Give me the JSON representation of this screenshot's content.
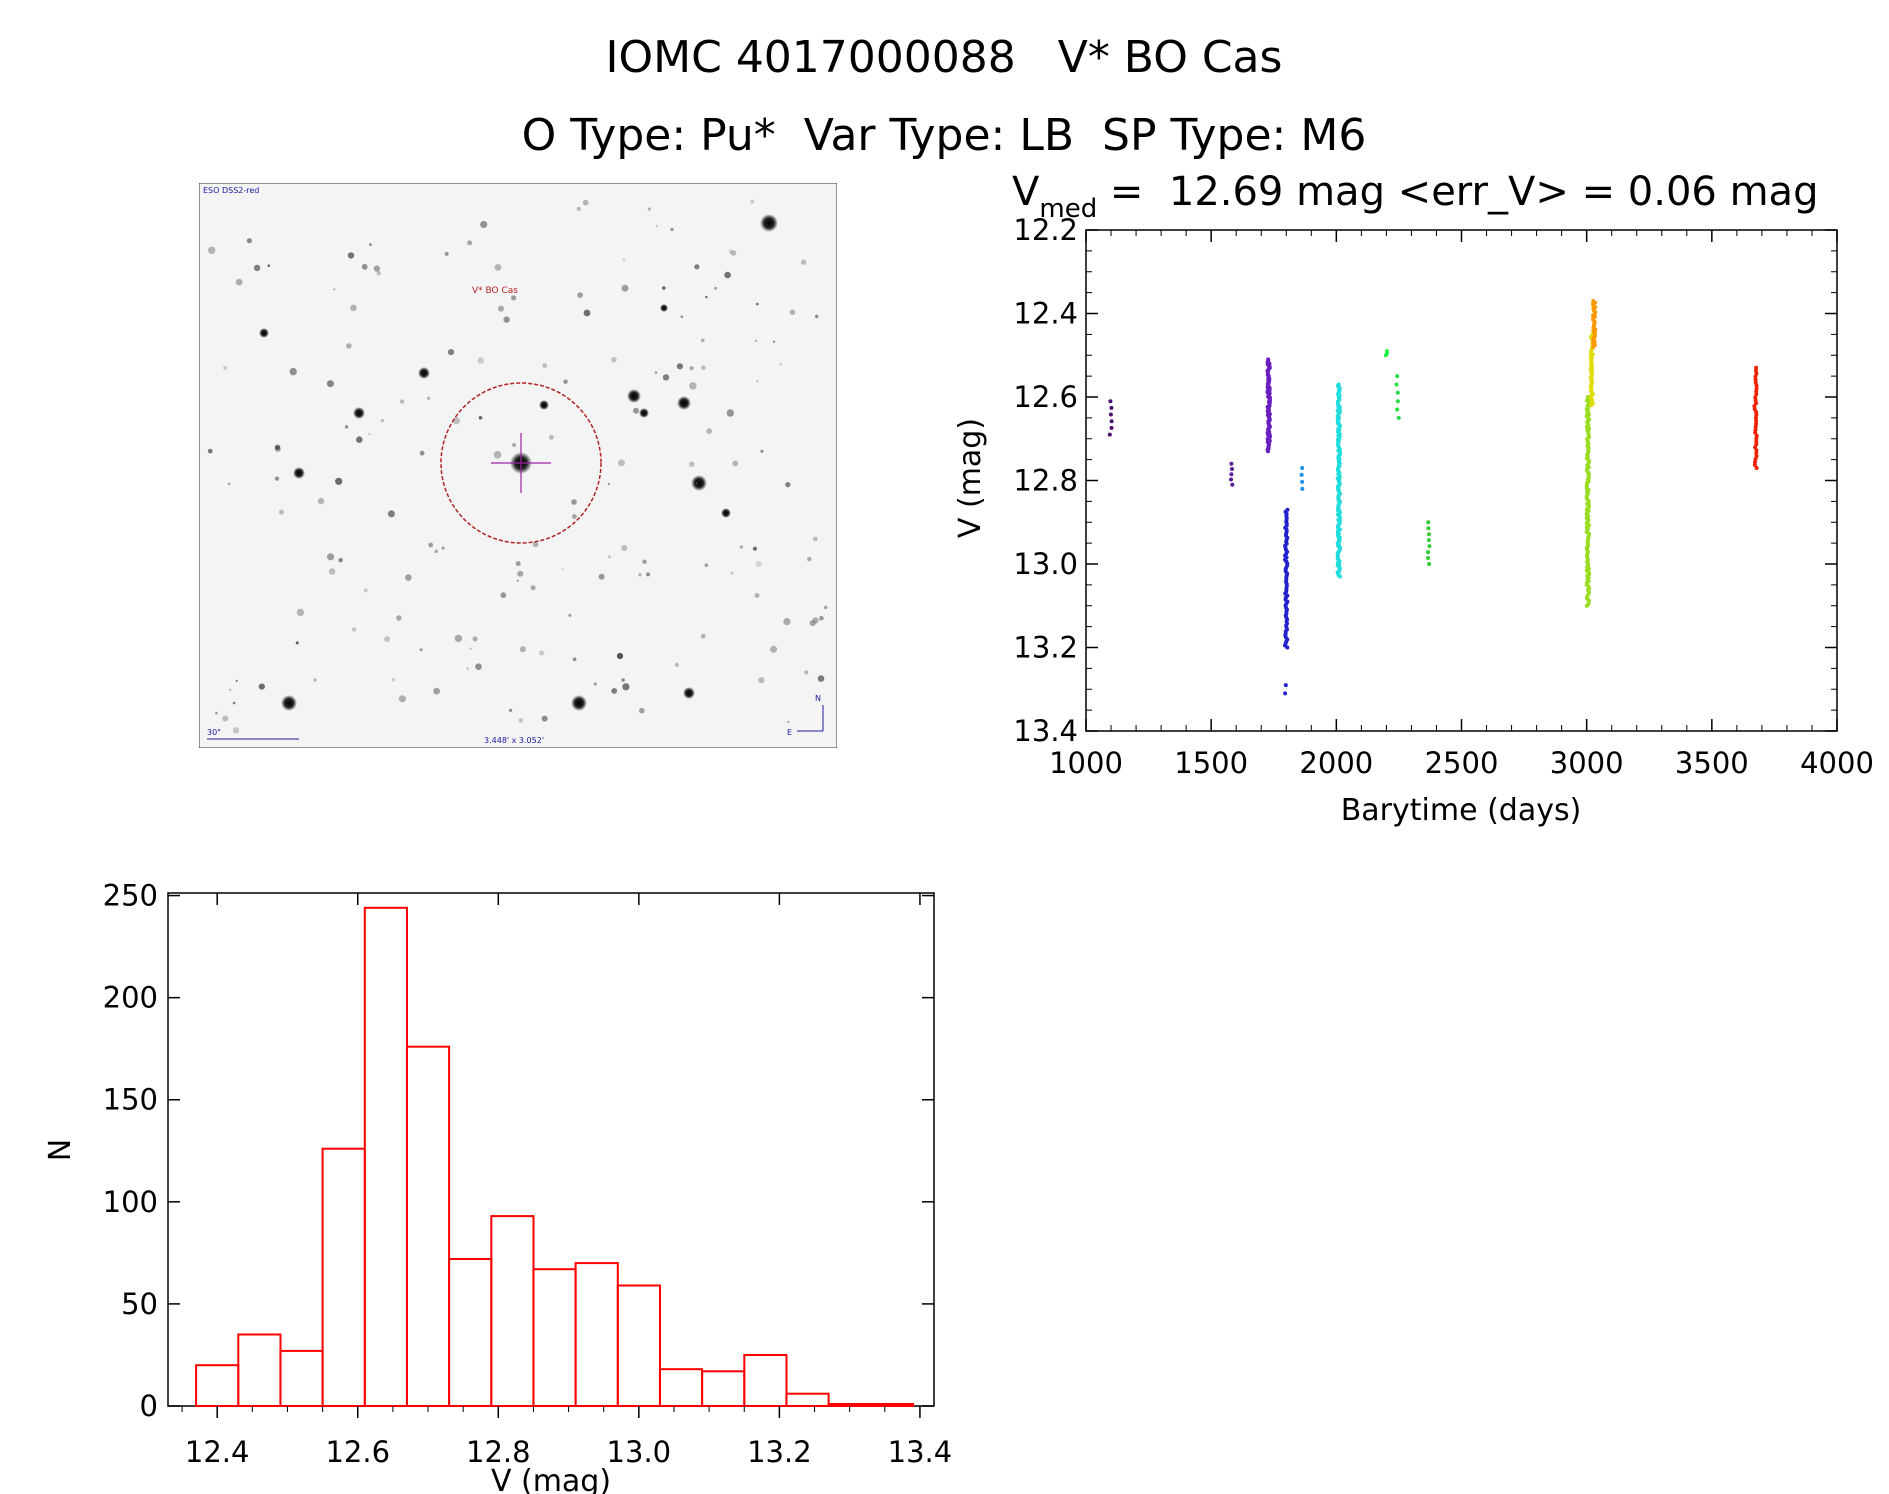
{
  "header": {
    "title": "IOMC 4017000088   V* BO Cas",
    "subtitle": "O Type: Pu*  Var Type: LB  SP Type: M6"
  },
  "finder_chart": {
    "survey_label": "ESO DSS2-red",
    "target_label": "V* BO Cas",
    "scale_label": "30\"",
    "fov_label": "3.448' x 3.052'",
    "compass": {
      "north": "N",
      "east": "E"
    },
    "colors": {
      "circle": "#b22222",
      "crosshair": "#a020a0",
      "labels": "#1a1aa0",
      "target_label": "#b22222"
    }
  },
  "light_curve_title": {
    "v_symbol": "V",
    "v_subscript": "med",
    "rest": " =  12.69 mag <err_V> = 0.06 mag"
  },
  "chart_data": [
    {
      "type": "scatter",
      "xlabel": "Barytime (days)",
      "ylabel": "V (mag)",
      "xlim": [
        1000,
        4000
      ],
      "ylim": [
        13.4,
        12.2
      ],
      "y_inverted": true,
      "xticks": [
        1000,
        1500,
        2000,
        2500,
        3000,
        3500,
        4000
      ],
      "yticks": [
        12.2,
        12.4,
        12.6,
        12.8,
        13.0,
        13.2,
        13.4
      ],
      "groups": [
        {
          "x": 1100,
          "y_min": 12.61,
          "y_max": 12.69,
          "count": 6,
          "color": "#4b0f6e"
        },
        {
          "x": 1580,
          "y_min": 12.76,
          "y_max": 12.81,
          "count": 5,
          "color": "#5a1e96"
        },
        {
          "x": 1730,
          "y_min": 12.51,
          "y_max": 12.73,
          "count": 90,
          "color": "#6a1fc0"
        },
        {
          "x": 1800,
          "y_min": 12.87,
          "y_max": 13.2,
          "count": 70,
          "color": "#2222cc"
        },
        {
          "x": 1800,
          "y_min": 13.29,
          "y_max": 13.31,
          "count": 2,
          "color": "#2222cc"
        },
        {
          "x": 1860,
          "y_min": 12.77,
          "y_max": 12.82,
          "count": 4,
          "color": "#1e90e8"
        },
        {
          "x": 2010,
          "y_min": 12.57,
          "y_max": 13.03,
          "count": 140,
          "color": "#22dddd"
        },
        {
          "x": 2200,
          "y_min": 12.49,
          "y_max": 12.5,
          "count": 3,
          "color": "#22ee44"
        },
        {
          "x": 2245,
          "y_min": 12.55,
          "y_max": 12.65,
          "count": 6,
          "color": "#22dd44"
        },
        {
          "x": 2370,
          "y_min": 12.9,
          "y_max": 13.0,
          "count": 8,
          "color": "#33cc33"
        },
        {
          "x": 3005,
          "y_min": 12.6,
          "y_max": 13.1,
          "count": 120,
          "color": "#99dd22"
        },
        {
          "x": 3020,
          "y_min": 12.45,
          "y_max": 12.62,
          "count": 40,
          "color": "#dddd00"
        },
        {
          "x": 3030,
          "y_min": 12.37,
          "y_max": 12.48,
          "count": 30,
          "color": "#ff9900"
        },
        {
          "x": 3675,
          "y_min": 12.53,
          "y_max": 12.77,
          "count": 35,
          "color": "#ee2200"
        }
      ]
    },
    {
      "type": "histogram",
      "xlabel": "V (mag)",
      "ylabel": "N",
      "xlim": [
        12.33,
        13.42
      ],
      "ylim": [
        0,
        250
      ],
      "xticks": [
        12.4,
        12.6,
        12.8,
        13.0,
        13.2,
        13.4
      ],
      "yticks": [
        0,
        50,
        100,
        150,
        200,
        250
      ],
      "bin_edges": [
        12.37,
        12.43,
        12.49,
        12.55,
        12.61,
        12.67,
        12.73,
        12.79,
        12.85,
        12.91,
        12.97,
        13.03,
        13.09,
        13.15,
        13.21,
        13.27,
        13.33,
        13.39
      ],
      "counts": [
        20,
        35,
        27,
        126,
        244,
        176,
        72,
        93,
        67,
        70,
        59,
        18,
        17,
        25,
        6,
        1,
        1
      ],
      "color": "#ff0000"
    }
  ]
}
